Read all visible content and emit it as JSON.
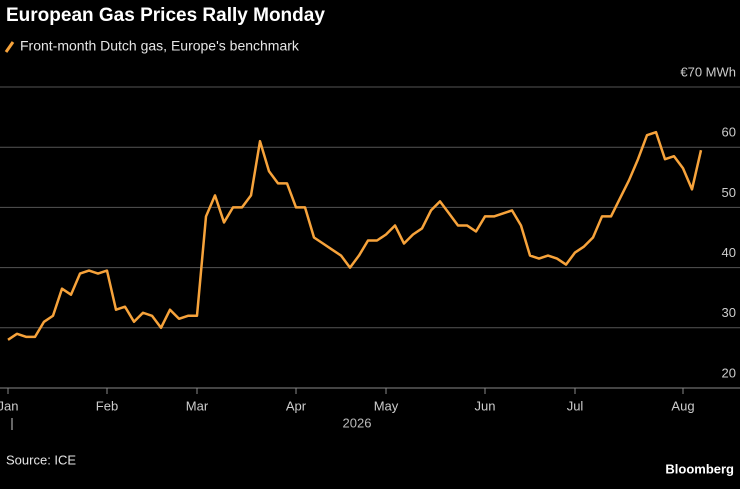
{
  "chart_data": {
    "type": "line",
    "title": "European Gas Prices Rally Monday",
    "year_label": "2026",
    "source": "Source: ICE",
    "brand": "Bloomberg",
    "categories": [
      "Jan",
      null,
      null,
      null,
      null,
      null,
      null,
      null,
      null,
      null,
      null,
      "Feb",
      null,
      null,
      null,
      null,
      null,
      null,
      null,
      null,
      null,
      "Mar",
      null,
      null,
      null,
      null,
      null,
      null,
      null,
      null,
      null,
      null,
      "Apr",
      null,
      null,
      null,
      null,
      null,
      null,
      null,
      null,
      null,
      "May",
      null,
      null,
      null,
      null,
      null,
      null,
      null,
      null,
      null,
      null,
      "Jun",
      null,
      null,
      null,
      null,
      null,
      null,
      null,
      null,
      null,
      "Jul",
      null,
      null,
      null,
      null,
      null,
      null,
      null,
      null,
      null,
      null,
      null,
      "Aug",
      null,
      null
    ],
    "series": [
      {
        "name": "Front-month Dutch gas, Europe's benchmark",
        "color": "#f7a33b",
        "values": [
          28,
          29,
          28.5,
          28.5,
          31,
          32,
          36.5,
          35.5,
          39,
          39.5,
          39,
          39.5,
          33,
          33.5,
          31,
          32.5,
          32,
          30,
          33,
          31.5,
          32,
          32,
          48.5,
          52,
          47.5,
          50,
          50,
          52,
          61,
          56,
          54,
          54,
          50,
          50,
          45,
          44,
          43,
          42,
          40,
          42,
          44.5,
          44.5,
          45.5,
          47,
          44,
          45.5,
          46.5,
          49.5,
          51,
          49,
          47,
          47,
          46,
          48.5,
          48.5,
          49,
          49.5,
          47,
          42,
          41.5,
          42,
          41.5,
          40.5,
          42.5,
          43.5,
          45,
          48.5,
          48.5,
          51.5,
          54.5,
          58,
          62,
          62.5,
          58,
          58.5,
          56.5,
          53,
          59.5
        ]
      }
    ],
    "ylim": [
      20,
      70
    ],
    "yticks": [
      20,
      30,
      40,
      50,
      60,
      {
        "value": 70,
        "label": "€70 MWh"
      }
    ],
    "grid": true
  }
}
